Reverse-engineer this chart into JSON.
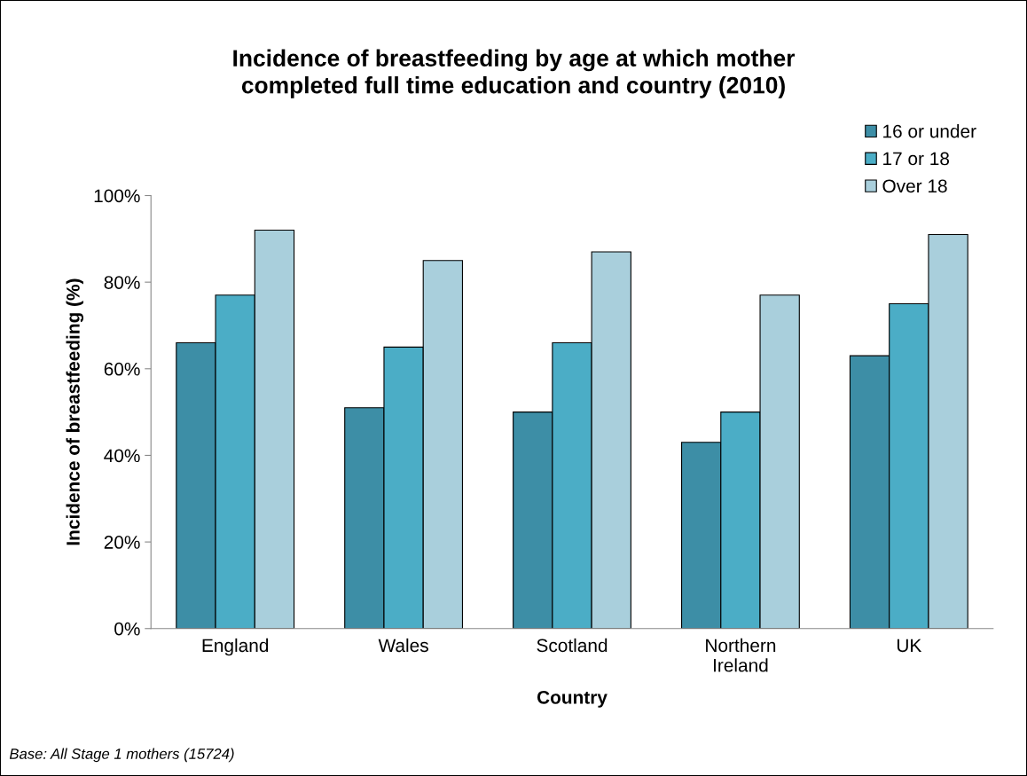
{
  "chart_data": {
    "type": "bar",
    "title": "Incidence of breastfeeding by age at which mother\ncompleted full time education and country (2010)",
    "xlabel": "Country",
    "ylabel": "Incidence of breastfeeding (%)",
    "categories": [
      "England",
      "Wales",
      "Scotland",
      "Northern\nIreland",
      "UK"
    ],
    "series": [
      {
        "name": "16 or under",
        "color": "#3d8ea6",
        "values": [
          66,
          51,
          50,
          43,
          63
        ]
      },
      {
        "name": "17 or 18",
        "color": "#4badc6",
        "values": [
          77,
          65,
          66,
          50,
          75
        ]
      },
      {
        "name": "Over 18",
        "color": "#a9cfdc",
        "values": [
          92,
          85,
          87,
          77,
          91
        ]
      }
    ],
    "ylim": [
      0,
      100
    ],
    "yticks": [
      {
        "value": 0,
        "label": "0%"
      },
      {
        "value": 20,
        "label": "20%"
      },
      {
        "value": 40,
        "label": "40%"
      },
      {
        "value": 60,
        "label": "60%"
      },
      {
        "value": 80,
        "label": "80%"
      },
      {
        "value": 100,
        "label": "100%"
      }
    ],
    "grid": false,
    "legend": "top right",
    "annotations": [
      "Base: All Stage 1 mothers (15724)"
    ]
  }
}
